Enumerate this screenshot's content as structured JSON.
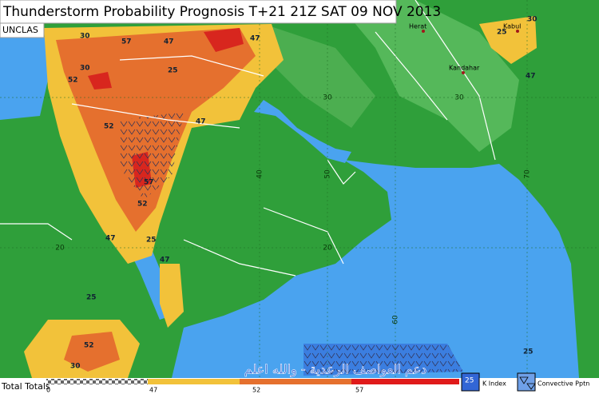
{
  "header": {
    "title": "Thunderstorm Probability Prognosis T+21 21Z SAT 09 NOV 2013",
    "classification": "UNCLAS"
  },
  "cities": [
    "Herat",
    "Kabul",
    "Kandahar"
  ],
  "grid_labels": [
    "30",
    "30",
    "20",
    "20",
    "40",
    "50",
    "60",
    "70"
  ],
  "contour_labels": [
    "30",
    "57",
    "52",
    "47",
    "25",
    "30",
    "52",
    "47",
    "57",
    "52",
    "47",
    "47",
    "25",
    "52",
    "30",
    "25",
    "47",
    "25",
    "30",
    "47",
    "25"
  ],
  "watermark": "دعم العواصف الرعدية - والله اعلم",
  "legend": {
    "title": "Total Totals",
    "scale": [
      "0",
      "47",
      "52",
      "57"
    ],
    "k_index_sample": "25",
    "k_index": "K Index",
    "convective": "Convective Pptn"
  }
}
